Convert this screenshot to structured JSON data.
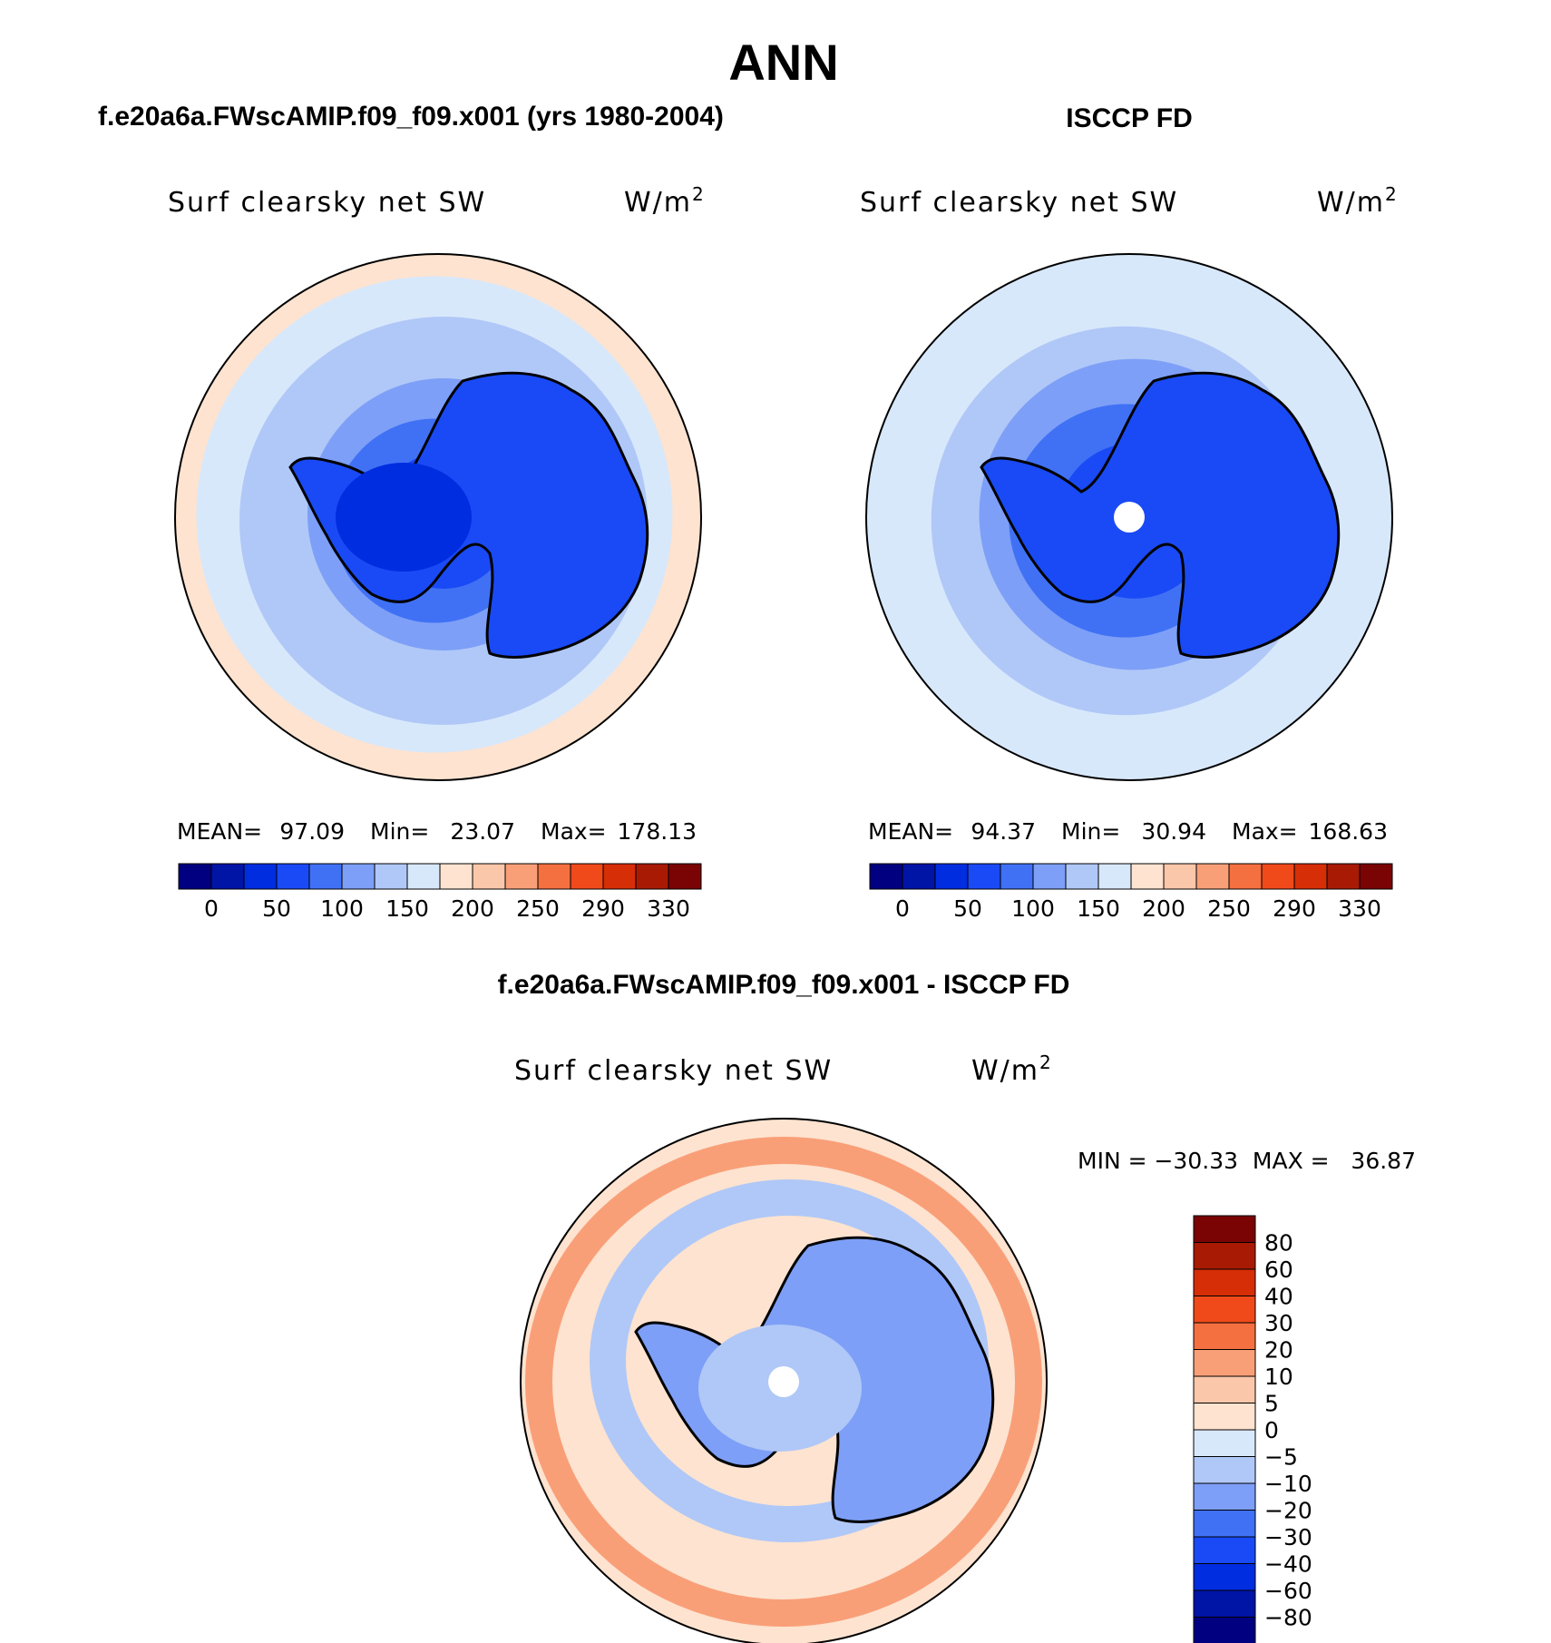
{
  "chart_data": {
    "type": "heatmap",
    "title": "ANN",
    "projection": "south polar stereographic",
    "colors": {
      "abs_scale": [
        "#000080",
        "#0014a6",
        "#002de0",
        "#1a4af5",
        "#4071f5",
        "#7d9ff7",
        "#b0c8f7",
        "#d8e8fb",
        "#fde3d0",
        "#fbc7aa",
        "#f99f78",
        "#f57040",
        "#f04a1a",
        "#d62e06",
        "#a81a03",
        "#7a0404"
      ],
      "diff_scale": [
        "#000080",
        "#0014a6",
        "#002de0",
        "#1a4af5",
        "#4071f5",
        "#7d9ff7",
        "#b0c8f7",
        "#d8e8fb",
        "#fde3d0",
        "#fbc7aa",
        "#f99f78",
        "#f57040",
        "#f04a1a",
        "#d62e06",
        "#a81a03",
        "#7a0404"
      ],
      "coast": "#000000"
    },
    "panels": [
      {
        "id": "model",
        "header": "f.e20a6a.FWscAMIP.f09_f09.x001 (yrs 1980-2004)",
        "field": "Surf clearsky net SW",
        "units": "W/m",
        "units_exp": "2",
        "stats": {
          "mean_label": "MEAN=",
          "mean": "97.09",
          "min_label": "Min=",
          "min": "23.07",
          "max_label": "Max=",
          "max": "178.13"
        },
        "colorbar_ticks": [
          "0",
          "50",
          "100",
          "150",
          "200",
          "250",
          "290",
          "330"
        ],
        "ring_levels": [
          23,
          60,
          85,
          105,
          125,
          145,
          162,
          178
        ],
        "continent_value": 65,
        "continent_interior_value": 35,
        "pole_missing": false
      },
      {
        "id": "obs",
        "header": "ISCCP FD",
        "field": "Surf clearsky net SW",
        "units": "W/m",
        "units_exp": "2",
        "stats": {
          "mean_label": "MEAN=",
          "mean": "94.37",
          "min_label": "Min=",
          "min": "30.94",
          "max_label": "Max=",
          "max": "168.63"
        },
        "colorbar_ticks": [
          "0",
          "50",
          "100",
          "150",
          "200",
          "250",
          "290",
          "330"
        ],
        "ring_levels": [
          31,
          70,
          90,
          110,
          130,
          150,
          165
        ],
        "continent_value": 62,
        "continent_interior_value": 62,
        "pole_missing": true
      }
    ],
    "difference": {
      "header": "f.e20a6a.FWscAMIP.f09_f09.x001 - ISCCP FD",
      "field": "Surf clearsky net SW",
      "units": "W/m",
      "units_exp": "2",
      "stats_label": "MIN = −30.33  MAX =   36.87",
      "min": -30.33,
      "max": 36.87,
      "colorbar_levels": [
        "80",
        "60",
        "40",
        "30",
        "20",
        "10",
        "5",
        "0",
        "−5",
        "−10",
        "−20",
        "−30",
        "−40",
        "−60",
        "−80"
      ],
      "continent_value": -15,
      "ocean_value": 3,
      "pole_missing": true
    }
  }
}
